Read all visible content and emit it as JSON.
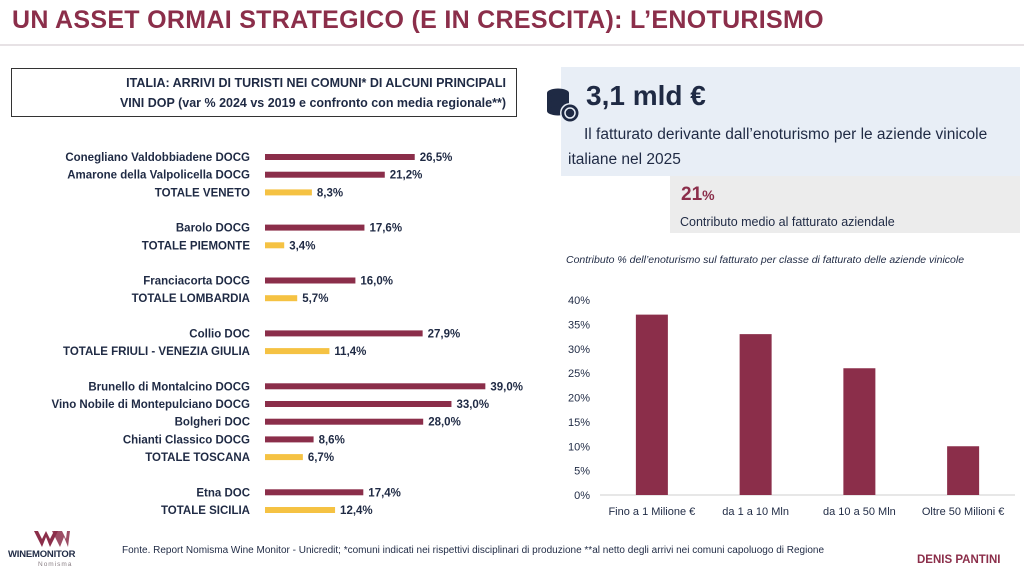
{
  "header": {
    "title": "UN ASSET ORMAI STRATEGICO (E IN CRESCITA): L’ENOTURISMO"
  },
  "left_panel": {
    "title_line1": "ITALIA: ARRIVI DI TURISTI NEI COMUNI* DI ALCUNI PRINCIPALI",
    "title_line2": "VINI DOP (var % 2024 vs 2019 e confronto con media regionale**)"
  },
  "kpi": {
    "value": "3,1 mld €",
    "description": "Il fatturato derivante dall’enoturismo per le aziende vinicole italiane nel 2025",
    "icon": "coins-icon"
  },
  "sub_kpi": {
    "value": "21",
    "unit": "%",
    "description": "Contributo medio al fatturato aziendale"
  },
  "right_panel": {
    "title": "Contributo %  dell’enoturismo sul fatturato per classe di fatturato delle aziende vinicole"
  },
  "footer": {
    "source": "Fonte. Report Nomisma Wine Monitor - Unicredit; *comuni indicati nei rispettivi disciplinari di produzione **al netto degli arrivi nei comuni capoluogo di Regione",
    "author": "DENIS PANTINI",
    "logo_text": "WINEMONITOR",
    "logo_sub": "Nomisma"
  },
  "colors": {
    "maroon": "#8b2e4a",
    "yellow": "#f5c243",
    "navy": "#1f2a44"
  },
  "chart_data": [
    {
      "type": "bar",
      "orientation": "horizontal",
      "groups": [
        {
          "items": [
            {
              "label": "Conegliano Valdobbiadene DOCG",
              "value": 26.5,
              "value_label": "26,5%",
              "kind": "dop"
            },
            {
              "label": "Amarone della Valpolicella DOCG",
              "value": 21.2,
              "value_label": "21,2%",
              "kind": "dop"
            },
            {
              "label": "TOTALE VENETO",
              "value": 8.3,
              "value_label": "8,3%",
              "kind": "total"
            }
          ]
        },
        {
          "items": [
            {
              "label": "Barolo DOCG",
              "value": 17.6,
              "value_label": "17,6%",
              "kind": "dop"
            },
            {
              "label": "TOTALE PIEMONTE",
              "value": 3.4,
              "value_label": "3,4%",
              "kind": "total"
            }
          ]
        },
        {
          "items": [
            {
              "label": "Franciacorta DOCG",
              "value": 16.0,
              "value_label": "16,0%",
              "kind": "dop"
            },
            {
              "label": "TOTALE LOMBARDIA",
              "value": 5.7,
              "value_label": "5,7%",
              "kind": "total"
            }
          ]
        },
        {
          "items": [
            {
              "label": "Collio DOC",
              "value": 27.9,
              "value_label": "27,9%",
              "kind": "dop"
            },
            {
              "label": "TOTALE FRIULI - VENEZIA GIULIA",
              "value": 11.4,
              "value_label": "11,4%",
              "kind": "total"
            }
          ]
        },
        {
          "items": [
            {
              "label": "Brunello di Montalcino DOCG",
              "value": 39.0,
              "value_label": "39,0%",
              "kind": "dop"
            },
            {
              "label": "Vino Nobile di Montepulciano DOCG",
              "value": 33.0,
              "value_label": "33,0%",
              "kind": "dop"
            },
            {
              "label": "Bolgheri DOC",
              "value": 28.0,
              "value_label": "28,0%",
              "kind": "dop"
            },
            {
              "label": "Chianti Classico DOCG",
              "value": 8.6,
              "value_label": "8,6%",
              "kind": "dop"
            },
            {
              "label": "TOTALE TOSCANA",
              "value": 6.7,
              "value_label": "6,7%",
              "kind": "total"
            }
          ]
        },
        {
          "items": [
            {
              "label": "Etna DOC",
              "value": 17.4,
              "value_label": "17,4%",
              "kind": "dop"
            },
            {
              "label": "TOTALE SICILIA",
              "value": 12.4,
              "value_label": "12,4%",
              "kind": "total"
            }
          ]
        }
      ],
      "xlim": [
        0,
        40
      ]
    },
    {
      "type": "bar",
      "categories": [
        "Fino a 1 Milione €",
        "da 1 a 10 Mln",
        "da 10 a 50 Mln",
        "Oltre 50 Milioni €"
      ],
      "values": [
        37,
        33,
        26,
        10
      ],
      "ylim": [
        0,
        40
      ],
      "yticks": [
        "0%",
        "5%",
        "10%",
        "15%",
        "20%",
        "25%",
        "30%",
        "35%",
        "40%"
      ],
      "grid": false
    }
  ]
}
